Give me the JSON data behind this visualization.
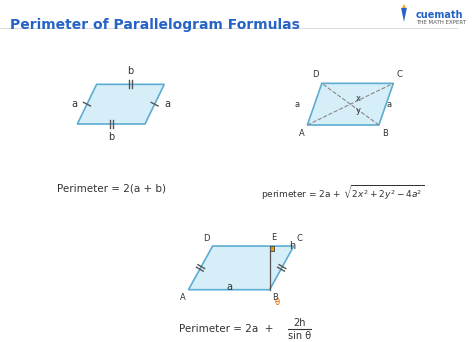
{
  "title": "Perimeter of Parallelogram Formulas",
  "title_color": "#2563c7",
  "bg_color": "#ffffff",
  "para_fill": "#d6eef8",
  "para_edge": "#5badd1",
  "formula1": "Perimeter = 2(a + b)",
  "formula2": "perimeter = 2a + √2x² + 2y² - 4a²",
  "formula3_parts": [
    "Perimeter = 2a  +  ",
    "2h",
    "sin θ"
  ]
}
